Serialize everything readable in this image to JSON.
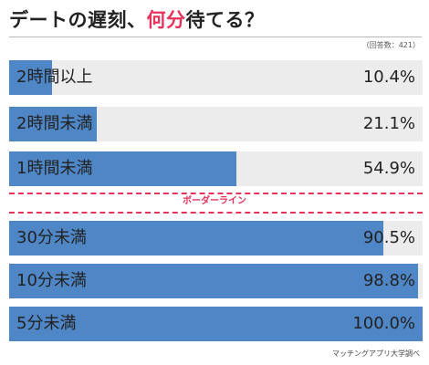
{
  "header": {
    "title_prefix": "デートの遅刻、",
    "title_highlight": "何分",
    "title_suffix": "待てる？",
    "sample_note": "（回答数：421）"
  },
  "footer": {
    "source": "マッチングアプリ大学調べ"
  },
  "colors": {
    "bar": "#4f86c6",
    "track": "#ececec",
    "accent": "#e8325a"
  },
  "chart_data": {
    "type": "bar",
    "orientation": "horizontal",
    "title": "デートの遅刻、何分待てる？",
    "categories": [
      "2時間以上",
      "2時間未満",
      "1時間未満",
      "30分未満",
      "10分未満",
      "5分未満"
    ],
    "values": [
      10.4,
      21.1,
      54.9,
      90.5,
      98.8,
      100.0
    ],
    "value_labels": [
      "10.4%",
      "21.1%",
      "54.9%",
      "90.5%",
      "98.8%",
      "100.0%"
    ],
    "xlim": [
      0,
      100
    ],
    "grid": false,
    "legend": "none",
    "annotation": {
      "label": "ボーダーライン",
      "after_index": 2
    }
  }
}
